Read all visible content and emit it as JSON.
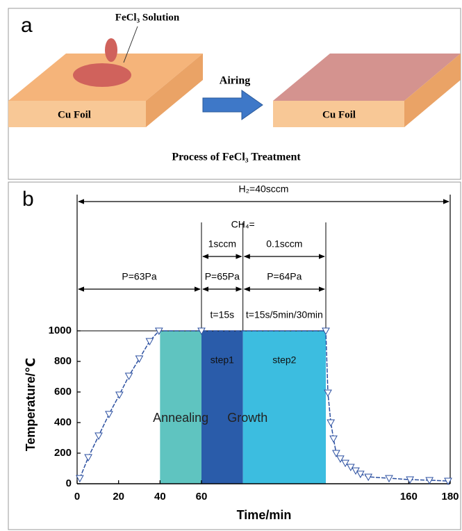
{
  "panel_a": {
    "label": "a",
    "solution_label": "FeCl₃ Solution",
    "foil_left": "Cu Foil",
    "arrow_label": "Airing",
    "foil_right": "Cu Foil",
    "caption": "Process of FeCl₃ Treatment"
  },
  "chart_data": {
    "type": "line",
    "panel_label": "b",
    "x_label": "Time/min",
    "y_label": "Temperature/℃",
    "x": [
      1.3,
      5.4,
      10.4,
      15.4,
      20.4,
      25,
      30,
      35,
      39.5,
      60,
      120,
      121,
      122.4,
      123.7,
      125,
      127,
      129.4,
      132,
      134.4,
      136.7,
      140.5,
      150.5,
      160.6,
      170,
      179
    ],
    "series": [
      {
        "color": "#2b4fa0",
        "values": [
          36,
          173,
          314,
          455,
          582,
          705,
          818,
          932,
          1000,
          1000,
          1000,
          595,
          400,
          295,
          200,
          164,
          136,
          109,
          86,
          64,
          45,
          36,
          27,
          23,
          18
        ]
      }
    ],
    "xlim": [
      0,
      180
    ],
    "ylim": [
      0,
      1000
    ],
    "xticks": [
      0,
      20,
      40,
      60,
      160,
      180
    ],
    "yticks": [
      0,
      200,
      400,
      600,
      800,
      1000
    ],
    "hline": 1000,
    "regions": [
      {
        "name": "step1",
        "start": 60,
        "end": 80,
        "color": "#2a5caa"
      },
      {
        "name": "step2",
        "start": 80,
        "end": 120,
        "color": "#3cbde0"
      },
      {
        "start": 40,
        "end": 60,
        "color": "#5fc4c0"
      }
    ],
    "phases": [
      {
        "name": "Annealing",
        "start": 40,
        "end": 60
      },
      {
        "name": "Growth",
        "start": 60,
        "end": 120
      }
    ],
    "h2": {
      "text": "H₂=40sccm",
      "start": 0,
      "end": 180
    },
    "ch4": {
      "label": "CH₄=",
      "flows": [
        {
          "text": "1sccm",
          "start": 60,
          "end": 80
        },
        {
          "text": "0.1sccm",
          "start": 80,
          "end": 120
        }
      ]
    },
    "pressure": [
      {
        "text": "P=63Pa",
        "start": 0,
        "end": 60
      },
      {
        "text": "P=65Pa",
        "start": 60,
        "end": 80
      },
      {
        "text": "P=64Pa",
        "start": 80,
        "end": 120
      }
    ],
    "time": [
      {
        "text": "t=15s",
        "start": 60,
        "end": 80
      },
      {
        "text": "t=15s/5min/30min",
        "start": 80,
        "end": 120
      }
    ]
  }
}
